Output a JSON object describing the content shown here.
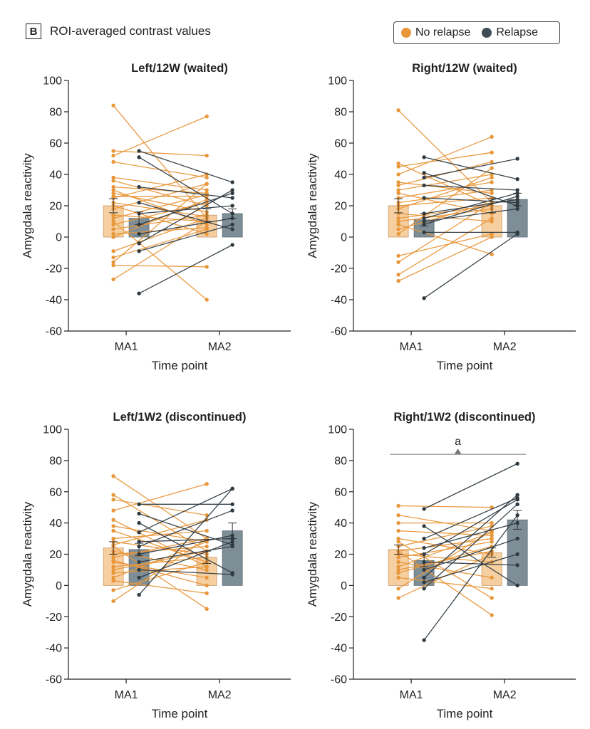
{
  "header": {
    "panel_letter": "B",
    "title": "ROI-averaged contrast values"
  },
  "legend": [
    {
      "label": "No relapse",
      "color": "#E8963A"
    },
    {
      "label": "Relapse",
      "color": "#3E4D56"
    }
  ],
  "colors": {
    "no_relapse": "#E8963A",
    "no_relapse_bar": "#F6CFA0",
    "relapse": "#2F3B42",
    "relapse_bar": "#7E8E97",
    "axis": "#222222",
    "significance": "#777777"
  },
  "chart_data": [
    {
      "type": "bar",
      "title": "Left/12W (waited)",
      "xlabel": "Time point",
      "ylabel": "Amygdala reactivity",
      "categories": [
        "MA1",
        "MA2"
      ],
      "ylim": [
        -60,
        100
      ],
      "yticks": [
        -60,
        -40,
        -20,
        0,
        20,
        40,
        60,
        80,
        100
      ],
      "significance": null,
      "series": [
        {
          "name": "No relapse",
          "values": [
            20,
            14
          ],
          "err": [
            4.5,
            4
          ],
          "pairs": [
            [
              84,
              12
            ],
            [
              55,
              52
            ],
            [
              52,
              77
            ],
            [
              48,
              38
            ],
            [
              38,
              30
            ],
            [
              36,
              20
            ],
            [
              32,
              28
            ],
            [
              30,
              8
            ],
            [
              28,
              16
            ],
            [
              25,
              40
            ],
            [
              22,
              13
            ],
            [
              20,
              2
            ],
            [
              18,
              34
            ],
            [
              14,
              10
            ],
            [
              12,
              27
            ],
            [
              8,
              22
            ],
            [
              5,
              14
            ],
            [
              2,
              6
            ],
            [
              0,
              24
            ],
            [
              -9,
              12
            ],
            [
              -13,
              5
            ],
            [
              -16,
              34
            ],
            [
              -18,
              -19
            ],
            [
              -27,
              10
            ],
            [
              10,
              -40
            ],
            [
              26,
              26
            ]
          ]
        },
        {
          "name": "Relapse",
          "values": [
            12,
            15
          ],
          "err": [
            4,
            3
          ],
          "pairs": [
            [
              55,
              35
            ],
            [
              51,
              15
            ],
            [
              32,
              25
            ],
            [
              22,
              5
            ],
            [
              15,
              20
            ],
            [
              8,
              28
            ],
            [
              2,
              12
            ],
            [
              -4,
              30
            ],
            [
              -9,
              8
            ],
            [
              -36,
              -5
            ]
          ]
        }
      ]
    },
    {
      "type": "bar",
      "title": "Right/12W (waited)",
      "xlabel": "Time point",
      "ylabel": "Amygdala reactivity",
      "categories": [
        "MA1",
        "MA2"
      ],
      "ylim": [
        -60,
        100
      ],
      "yticks": [
        -60,
        -40,
        -20,
        0,
        20,
        40,
        60,
        80,
        100
      ],
      "significance": null,
      "series": [
        {
          "name": "No relapse",
          "values": [
            20,
            20
          ],
          "err": [
            4.5,
            4.5
          ],
          "pairs": [
            [
              81,
              22
            ],
            [
              47,
              20
            ],
            [
              45,
              54
            ],
            [
              40,
              64
            ],
            [
              35,
              28
            ],
            [
              33,
              48
            ],
            [
              30,
              40
            ],
            [
              28,
              15
            ],
            [
              25,
              35
            ],
            [
              22,
              30
            ],
            [
              20,
              25
            ],
            [
              18,
              38
            ],
            [
              15,
              10
            ],
            [
              12,
              20
            ],
            [
              10,
              18
            ],
            [
              5,
              22
            ],
            [
              2,
              44
            ],
            [
              -12,
              2
            ],
            [
              -16,
              22
            ],
            [
              -24,
              12
            ],
            [
              -28,
              0
            ],
            [
              8,
              -11
            ]
          ]
        },
        {
          "name": "Relapse",
          "values": [
            11,
            24
          ],
          "err": [
            4,
            4
          ],
          "pairs": [
            [
              51,
              37
            ],
            [
              41,
              20
            ],
            [
              38,
              50
            ],
            [
              33,
              30
            ],
            [
              25,
              22
            ],
            [
              15,
              24
            ],
            [
              12,
              28
            ],
            [
              10,
              18
            ],
            [
              8,
              26
            ],
            [
              3,
              3
            ],
            [
              -39,
              2
            ]
          ]
        }
      ]
    },
    {
      "type": "bar",
      "title": "Left/1W2 (discontinued)",
      "xlabel": "Time point",
      "ylabel": "Amygdala reactivity",
      "categories": [
        "MA1",
        "MA2"
      ],
      "ylim": [
        -60,
        100
      ],
      "yticks": [
        -60,
        -40,
        -20,
        0,
        20,
        40,
        60,
        80,
        100
      ],
      "significance": null,
      "series": [
        {
          "name": "No relapse",
          "values": [
            24,
            18
          ],
          "err": [
            4,
            4
          ],
          "pairs": [
            [
              70,
              30
            ],
            [
              58,
              22
            ],
            [
              55,
              45
            ],
            [
              48,
              65
            ],
            [
              42,
              12
            ],
            [
              38,
              28
            ],
            [
              35,
              15
            ],
            [
              30,
              35
            ],
            [
              28,
              20
            ],
            [
              26,
              42
            ],
            [
              22,
              10
            ],
            [
              20,
              25
            ],
            [
              18,
              30
            ],
            [
              15,
              5
            ],
            [
              12,
              18
            ],
            [
              10,
              22
            ],
            [
              8,
              12
            ],
            [
              5,
              28
            ],
            [
              3,
              -5
            ],
            [
              -3,
              15
            ],
            [
              -10,
              30
            ],
            [
              25,
              -15
            ],
            [
              16,
              0
            ]
          ]
        },
        {
          "name": "Relapse",
          "values": [
            23,
            35
          ],
          "err": [
            4,
            5
          ],
          "pairs": [
            [
              52,
              52
            ],
            [
              46,
              26
            ],
            [
              40,
              8
            ],
            [
              34,
              62
            ],
            [
              28,
              30
            ],
            [
              25,
              48
            ],
            [
              20,
              32
            ],
            [
              15,
              25
            ],
            [
              10,
              7
            ],
            [
              5,
              28
            ],
            [
              -6,
              62
            ]
          ]
        }
      ]
    },
    {
      "type": "bar",
      "title": "Right/1W2 (discontinued)",
      "xlabel": "Time point",
      "ylabel": "Amygdala reactivity",
      "categories": [
        "MA1",
        "MA2"
      ],
      "ylim": [
        -60,
        100
      ],
      "yticks": [
        -60,
        -40,
        -20,
        0,
        20,
        40,
        60,
        80,
        100
      ],
      "significance": {
        "label": "a",
        "y": 84
      },
      "series": [
        {
          "name": "No relapse",
          "values": [
            23,
            21
          ],
          "err": [
            3,
            3
          ],
          "pairs": [
            [
              51,
              50
            ],
            [
              45,
              35
            ],
            [
              40,
              40
            ],
            [
              35,
              32
            ],
            [
              30,
              20
            ],
            [
              28,
              -8
            ],
            [
              25,
              38
            ],
            [
              22,
              30
            ],
            [
              20,
              15
            ],
            [
              18,
              28
            ],
            [
              15,
              5
            ],
            [
              12,
              34
            ],
            [
              10,
              22
            ],
            [
              8,
              25
            ],
            [
              5,
              -2
            ],
            [
              -2,
              35
            ],
            [
              -8,
              20
            ],
            [
              22,
              -19
            ]
          ]
        },
        {
          "name": "Relapse",
          "values": [
            16,
            42
          ],
          "err": [
            4,
            6
          ],
          "pairs": [
            [
              49,
              78
            ],
            [
              38,
              0
            ],
            [
              30,
              56
            ],
            [
              24,
              40
            ],
            [
              20,
              55
            ],
            [
              15,
              13
            ],
            [
              10,
              30
            ],
            [
              5,
              58
            ],
            [
              2,
              20
            ],
            [
              -2,
              52
            ],
            [
              -35,
              45
            ]
          ]
        }
      ]
    }
  ]
}
